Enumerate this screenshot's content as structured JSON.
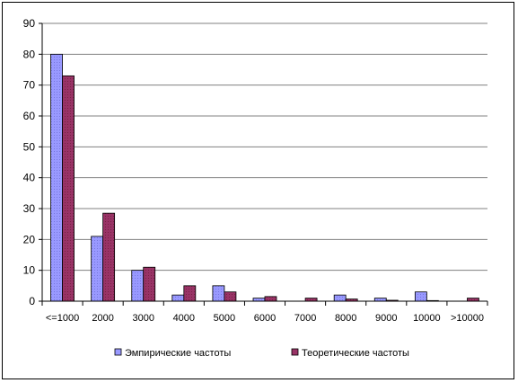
{
  "chart_data": {
    "type": "bar",
    "categories": [
      "<=1000",
      "2000",
      "3000",
      "4000",
      "5000",
      "6000",
      "7000",
      "8000",
      "9000",
      "10000",
      ">10000"
    ],
    "series": [
      {
        "name": "Эмпирические частоты",
        "values": [
          80,
          21,
          10,
          2,
          5,
          1,
          0,
          2,
          1,
          3,
          0
        ],
        "color": "#9999FF"
      },
      {
        "name": "Теоретические частоты",
        "values": [
          73,
          28.5,
          11,
          5,
          3,
          1.5,
          1,
          0.7,
          0.3,
          0.2,
          1
        ],
        "color": "#993366"
      }
    ],
    "ylim": [
      0,
      90
    ],
    "yticks": [
      0,
      10,
      20,
      30,
      40,
      50,
      60,
      70,
      80,
      90
    ],
    "grid": true,
    "legend_position": "bottom",
    "plot_background": "#ffffff",
    "grid_color": "#808080"
  }
}
